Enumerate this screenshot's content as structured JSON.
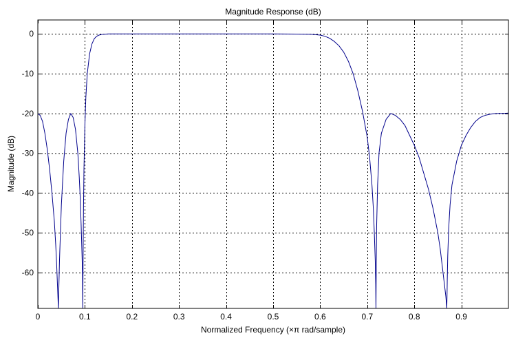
{
  "chart_data": {
    "type": "line",
    "title": "Magnitude Response (dB)",
    "xlabel": "Normalized Frequency (×π rad/sample)",
    "ylabel": "Magnitude (dB)",
    "xlim": [
      0,
      1
    ],
    "ylim": [
      -69,
      3.5
    ],
    "xticks": [
      0,
      0.1,
      0.2,
      0.3,
      0.4,
      0.5,
      0.6,
      0.7,
      0.8,
      0.9
    ],
    "xtick_labels": [
      "0",
      "0.1",
      "0.2",
      "0.3",
      "0.4",
      "0.5",
      "0.6",
      "0.7",
      "0.8",
      "0.9"
    ],
    "yticks": [
      0,
      -10,
      -20,
      -30,
      -40,
      -50,
      -60
    ],
    "ytick_labels": [
      "0",
      "-10",
      "-20",
      "-30",
      "-40",
      "-50",
      "-60"
    ],
    "grid": true,
    "line_color": "#00008b",
    "series": [
      {
        "x": [
          0,
          0.005,
          0.01,
          0.015,
          0.02,
          0.025,
          0.03,
          0.035,
          0.038,
          0.04,
          0.042,
          0.043,
          0.0435,
          0.044,
          0.045,
          0.046,
          0.048,
          0.05,
          0.055,
          0.06,
          0.065,
          0.07,
          0.075,
          0.08,
          0.085,
          0.088,
          0.09,
          0.092,
          0.094,
          0.095,
          0.0955,
          0.096,
          0.0965,
          0.097,
          0.098,
          0.1,
          0.102,
          0.105,
          0.11,
          0.115,
          0.12,
          0.125,
          0.13,
          0.135,
          0.14,
          0.145,
          0.15,
          0.2,
          0.3,
          0.4,
          0.5,
          0.55,
          0.58,
          0.6,
          0.61,
          0.62,
          0.63,
          0.64,
          0.65,
          0.66,
          0.67,
          0.68,
          0.69,
          0.7,
          0.705,
          0.71,
          0.713,
          0.715,
          0.717,
          0.718,
          0.7185,
          0.719,
          0.72,
          0.722,
          0.725,
          0.73,
          0.74,
          0.75,
          0.76,
          0.77,
          0.78,
          0.79,
          0.8,
          0.81,
          0.82,
          0.83,
          0.84,
          0.85,
          0.855,
          0.86,
          0.864,
          0.867,
          0.869,
          0.8695,
          0.87,
          0.871,
          0.873,
          0.876,
          0.88,
          0.89,
          0.9,
          0.91,
          0.92,
          0.93,
          0.94,
          0.95,
          0.96,
          0.97,
          0.98,
          0.99,
          1.0
        ],
        "y": [
          -20,
          -20.5,
          -22,
          -25,
          -29,
          -34,
          -40,
          -47,
          -53,
          -58,
          -64,
          -67,
          -69,
          -67,
          -62,
          -57,
          -50,
          -43,
          -32,
          -25,
          -21.5,
          -20,
          -21,
          -24,
          -30,
          -36,
          -41,
          -48,
          -56,
          -61,
          -69,
          -60,
          -52,
          -44,
          -34,
          -23,
          -16,
          -10,
          -5,
          -2.5,
          -1.2,
          -0.6,
          -0.3,
          -0.15,
          -0.08,
          -0.04,
          0,
          0,
          0,
          0,
          0,
          -0.05,
          -0.1,
          -0.3,
          -0.6,
          -1.1,
          -1.9,
          -3,
          -4.6,
          -6.9,
          -10,
          -14.3,
          -19.5,
          -26,
          -31,
          -38,
          -44,
          -50,
          -57,
          -63,
          -69,
          -60,
          -48,
          -38,
          -30,
          -25,
          -21.5,
          -20,
          -20.5,
          -21.5,
          -23,
          -25.5,
          -28,
          -31,
          -35,
          -39,
          -44,
          -50,
          -54,
          -59,
          -63,
          -66,
          -69,
          -66,
          -62,
          -56,
          -49,
          -43,
          -38,
          -32,
          -28,
          -25.5,
          -23.5,
          -22,
          -21,
          -20.5,
          -20.2,
          -20.05,
          -20,
          -19.98,
          -19.9
        ]
      }
    ]
  }
}
